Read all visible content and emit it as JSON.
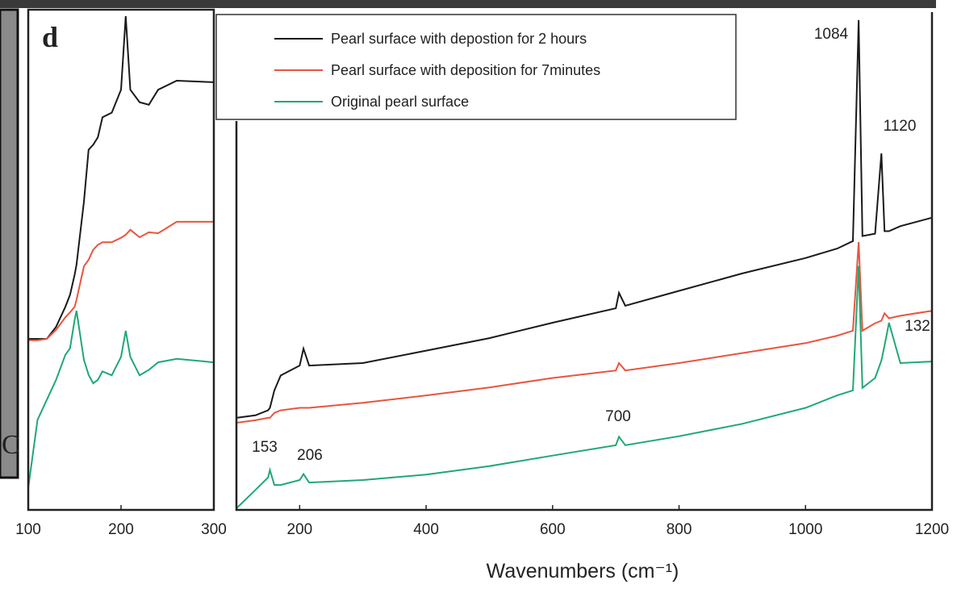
{
  "chart_data": [
    {
      "type": "line",
      "panel_label": "d",
      "x": [
        100,
        110,
        120,
        130,
        140,
        145,
        150,
        152,
        160,
        165,
        170,
        175,
        180,
        190,
        200,
        205,
        210,
        220,
        230,
        240,
        260,
        300
      ],
      "series": [
        {
          "color": "#1a1a1a",
          "values": [
            34.2,
            34.2,
            34.2,
            36.6,
            40.6,
            43,
            47,
            49,
            61.6,
            72,
            73,
            74.5,
            78.5,
            79.4,
            84,
            98.7,
            84,
            81.5,
            81,
            84,
            85.8,
            85.5
          ]
        },
        {
          "color": "#e8553f",
          "values": [
            33.9,
            33.9,
            34.2,
            36,
            38.5,
            39.5,
            40.6,
            42,
            48.7,
            50,
            52,
            53,
            53.5,
            53.5,
            54.4,
            55,
            56,
            54.5,
            55.5,
            55.3,
            57.6,
            57.6
          ]
        },
        {
          "color": "#1fa874",
          "values": [
            4.4,
            18,
            22,
            26,
            31,
            32.3,
            38,
            39.8,
            30,
            27,
            25.3,
            26,
            27.7,
            26.9,
            30.6,
            35.8,
            30.6,
            26.9,
            28,
            29.5,
            30.2,
            29.5
          ]
        }
      ],
      "xlim": [
        100,
        300
      ],
      "xticks": [
        100,
        200,
        300
      ],
      "ylim": [
        0,
        100
      ]
    },
    {
      "type": "line",
      "xlabel": "Wavenumbers (cm⁻¹)",
      "x": [
        100,
        130,
        150,
        153,
        160,
        170,
        200,
        206,
        215,
        300,
        400,
        500,
        600,
        700,
        705,
        715,
        800,
        900,
        1000,
        1050,
        1075,
        1084,
        1090,
        1110,
        1120,
        1125,
        1132,
        1150,
        1200
      ],
      "series": [
        {
          "name": "Pearl surface with depostion for 2 hours",
          "color": "#1a1a1a",
          "values": [
            18.5,
            19,
            20,
            20.5,
            24,
            27,
            29,
            32.4,
            29,
            29.5,
            32,
            34.5,
            37.6,
            40.5,
            43.6,
            41,
            44,
            47.5,
            50.6,
            52.5,
            54,
            98.4,
            55,
            55.5,
            71.6,
            56,
            56,
            57,
            58.7
          ]
        },
        {
          "name": "Pearl surface with deposition for 7minutes",
          "color": "#e8553f",
          "values": [
            17.5,
            18,
            18.5,
            18.5,
            19.5,
            20,
            20.5,
            20.5,
            20.5,
            21.5,
            23,
            24.6,
            26.5,
            28,
            29.5,
            28,
            29.5,
            31.5,
            33.5,
            35,
            36,
            53.8,
            36,
            37.5,
            38,
            39.5,
            38.5,
            39,
            40
          ]
        },
        {
          "name": "Original pearl surface",
          "color": "#1fa874",
          "values": [
            0.3,
            4,
            6.5,
            8,
            5,
            5,
            6,
            7.2,
            5.5,
            6,
            7.1,
            8.8,
            10.9,
            13,
            14.7,
            13,
            14.8,
            17.3,
            20.5,
            23,
            24,
            49,
            24.5,
            26.5,
            30,
            33,
            37.6,
            29.5,
            29.8
          ]
        }
      ],
      "annotations": [
        "1084",
        "1120",
        "153",
        "206",
        "700",
        "132"
      ],
      "xlim": [
        100,
        1200
      ],
      "xticks": [
        200,
        400,
        600,
        800,
        1000,
        1200
      ],
      "ylim": [
        0,
        100
      ]
    }
  ],
  "side_panel_label": "C"
}
